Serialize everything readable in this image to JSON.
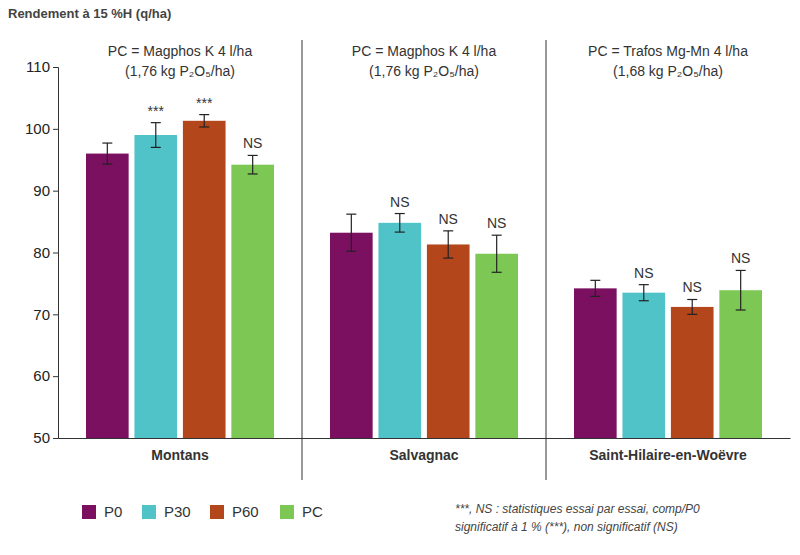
{
  "chart_data": {
    "type": "bar",
    "y_label": "Rendement à 15 %H (q/ha)",
    "categories": [
      "Montans",
      "Salvagnac",
      "Saint-Hilaire-en-Woëvre"
    ],
    "panel_titles": [
      [
        "PC = Magphos K 4 l/ha",
        "(1,76 kg P₂O₅/ha)"
      ],
      [
        "PC = Magphos K 4 l/ha",
        "(1,76 kg P₂O₅/ha)"
      ],
      [
        "PC = Trafos Mg-Mn 4 l/ha",
        "(1,68 kg P₂O₅/ha)"
      ]
    ],
    "series": [
      {
        "name": "P0",
        "color": "#7b1060",
        "values": [
          96.0,
          83.2,
          74.2
        ],
        "errors": [
          1.7,
          3.0,
          1.3
        ]
      },
      {
        "name": "P30",
        "color": "#4fc3c8",
        "values": [
          99.0,
          84.8,
          73.5
        ],
        "errors": [
          2.0,
          1.5,
          1.3
        ],
        "significance": [
          "***",
          "NS",
          "NS"
        ]
      },
      {
        "name": "P60",
        "color": "#b4461c",
        "values": [
          101.3,
          81.3,
          71.2
        ],
        "errors": [
          1.0,
          2.2,
          1.2
        ],
        "significance": [
          "***",
          "NS",
          "NS"
        ]
      },
      {
        "name": "PC",
        "color": "#7dc855",
        "values": [
          94.2,
          79.8,
          73.9
        ],
        "errors": [
          1.5,
          3.0,
          3.2
        ],
        "significance": [
          "NS",
          "NS",
          "NS"
        ]
      }
    ],
    "ylim": [
      50,
      110
    ],
    "yticks": [
      50,
      60,
      70,
      80,
      90,
      100,
      110
    ],
    "grid": false,
    "legend": "bottom-left",
    "annotations": [
      "***, NS : statistiques essai par essai, comp/P0",
      "significatif à 1 % (***), non significatif (NS)"
    ]
  }
}
